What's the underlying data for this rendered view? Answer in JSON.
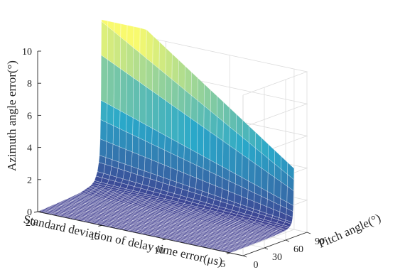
{
  "chart_data": {
    "type": "surface",
    "title": "",
    "xlabel": "Standard deviation of delay time error(μs)",
    "ylabel": "Pitch angle(°)",
    "zlabel": "Azimuth angle error(°)",
    "x_ticks": [
      "20",
      "15",
      "10",
      "5"
    ],
    "y_ticks": [
      "0",
      "30",
      "60",
      "90"
    ],
    "z_ticks": [
      "0",
      "2",
      "4",
      "6",
      "8",
      "10"
    ],
    "xlim": [
      4,
      20
    ],
    "ylim": [
      0,
      90
    ],
    "zlim": [
      0,
      10
    ],
    "grid": true,
    "colormap": "parula",
    "surface": {
      "x_values": [
        20,
        5
      ],
      "pitch_angles": [
        0,
        30,
        45,
        60,
        75,
        80,
        85,
        87,
        88,
        89,
        90
      ],
      "error_at_x20": [
        0.0,
        0.09,
        0.14,
        0.21,
        0.42,
        0.63,
        1.26,
        2.1,
        3.1,
        5.5,
        12.5
      ],
      "error_at_x5": [
        0.0,
        0.02,
        0.03,
        0.05,
        0.1,
        0.15,
        0.3,
        0.5,
        0.8,
        1.5,
        3.8
      ]
    },
    "colors": {
      "low": "#3e3a8e",
      "mid": "#2aa8c9",
      "high": "#f9fa6e",
      "edge": "#ffffff",
      "axis": "#262626",
      "grid": "#dcdcdc"
    }
  }
}
